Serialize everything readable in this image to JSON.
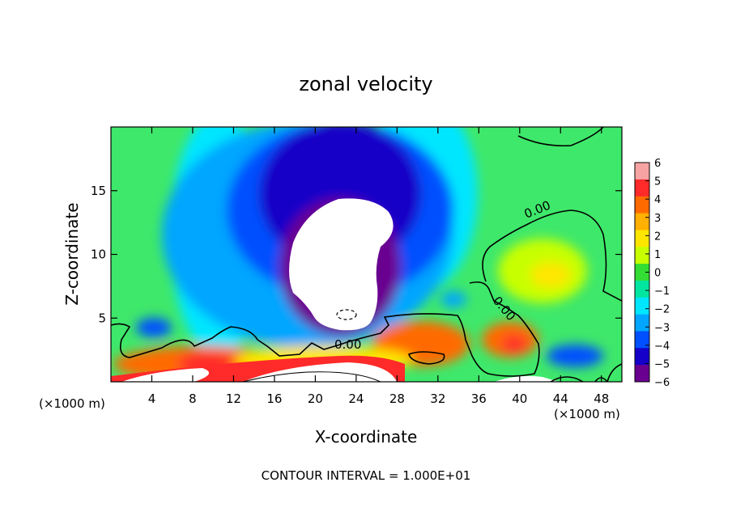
{
  "chart_data": {
    "type": "heatmap",
    "title": "zonal velocity",
    "xlabel": "X-coordinate",
    "ylabel": "Z-coordinate",
    "x_unit_left": "(×1000 m)",
    "x_unit_right": "(×1000 m)",
    "footer": "CONTOUR INTERVAL = 1.000E+01",
    "xlim": [
      0,
      50
    ],
    "ylim": [
      0,
      20
    ],
    "x_ticks": [
      4,
      8,
      12,
      16,
      20,
      24,
      28,
      32,
      36,
      40,
      44,
      48
    ],
    "y_ticks": [
      5,
      10,
      15
    ],
    "colorbar": {
      "min": -6,
      "max": 6,
      "labels": [
        "6",
        "5",
        "4",
        "3",
        "2",
        "1",
        "0",
        "−1",
        "−2",
        "−3",
        "−4",
        "−5",
        "−6"
      ],
      "colors": [
        "#f7a3a3",
        "#ff2a2a",
        "#ff6a00",
        "#ffb000",
        "#ffe600",
        "#c8ff00",
        "#33dd33",
        "#00e6a0",
        "#00e6ff",
        "#00a6ff",
        "#0050ff",
        "#1400c8",
        "#6a0090"
      ]
    },
    "contour_labels": [
      "0.00",
      "0.00",
      "0.00"
    ],
    "features": [
      {
        "kind": "min",
        "x": 22,
        "z": 11,
        "value": -6
      },
      {
        "kind": "max",
        "x": 10,
        "z": 1.5,
        "value": 6
      },
      {
        "kind": "max",
        "x": 40,
        "z": 3,
        "value": 5
      },
      {
        "kind": "max",
        "x": 44,
        "z": 9,
        "value": 2
      }
    ]
  }
}
